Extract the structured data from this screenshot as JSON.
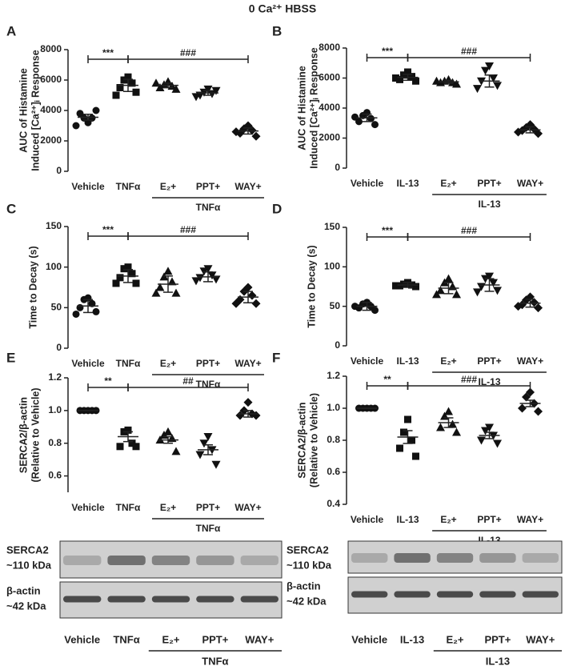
{
  "title": "0 Ca²⁺ HBSS",
  "chart_data": [
    {
      "type": "dot",
      "panel": "A",
      "ylabel": [
        "AUC of Histamine",
        "Induced [Ca²⁺]ᵢ Response"
      ],
      "categories": [
        "Vehicle",
        "TNFα",
        "E₂+",
        "PPT+",
        "WAY+"
      ],
      "markers": [
        "circle",
        "square",
        "triangle",
        "triangle-down",
        "diamond"
      ],
      "points": [
        [
          3200,
          3500,
          3500,
          3800,
          4000,
          3000
        ],
        [
          6200,
          6000,
          5800,
          5500,
          5200,
          5000
        ],
        [
          5900,
          5700,
          5600,
          5500,
          5400,
          5800
        ],
        [
          5400,
          5200,
          5100,
          5000,
          5300,
          4900
        ],
        [
          3000,
          2800,
          2700,
          2500,
          2300,
          2600
        ]
      ],
      "means": [
        3550,
        5650,
        5650,
        5150,
        2650
      ],
      "errors": [
        200,
        400,
        150,
        150,
        200
      ],
      "ylim": [
        0,
        8000
      ],
      "yticks": [
        0,
        2000,
        4000,
        6000,
        8000
      ],
      "brackets": [
        {
          "label": "***",
          "from": "Vehicle",
          "to": "TNFα"
        },
        {
          "label": "###",
          "from": "TNFα",
          "to": "WAY+"
        }
      ],
      "group": {
        "label": "TNFα",
        "categories": [
          "E₂+",
          "PPT+",
          "WAY+"
        ]
      }
    },
    {
      "type": "dot",
      "panel": "B",
      "ylabel": [
        "AUC of Histamine",
        "Induced [Ca²⁺]ᵢ Response"
      ],
      "categories": [
        "Vehicle",
        "IL-13",
        "E₂+",
        "PPT+",
        "WAY+"
      ],
      "markers": [
        "circle",
        "square",
        "triangle",
        "triangle-down",
        "diamond"
      ],
      "points": [
        [
          3700,
          3500,
          3300,
          3100,
          2900,
          3400
        ],
        [
          6400,
          6200,
          6100,
          5900,
          5800,
          6000
        ],
        [
          5900,
          5800,
          5700,
          5700,
          5600,
          5800
        ],
        [
          6800,
          6500,
          6000,
          5800,
          5500,
          5300
        ],
        [
          2900,
          2700,
          2600,
          2500,
          2300,
          2400
        ]
      ],
      "means": [
        3350,
        6050,
        5750,
        5800,
        2550
      ],
      "errors": [
        250,
        200,
        100,
        400,
        200
      ],
      "ylim": [
        0,
        8000
      ],
      "yticks": [
        0,
        2000,
        4000,
        6000,
        8000
      ],
      "brackets": [
        {
          "label": "***",
          "from": "Vehicle",
          "to": "IL-13"
        },
        {
          "label": "###",
          "from": "IL-13",
          "to": "WAY+"
        }
      ],
      "group": {
        "label": "IL-13",
        "categories": [
          "E₂+",
          "PPT+",
          "WAY+"
        ]
      }
    },
    {
      "type": "dot",
      "panel": "C",
      "ylabel": [
        "Time to Decay (s)"
      ],
      "categories": [
        "Vehicle",
        "TNFα",
        "E₂+",
        "PPT+",
        "WAY+"
      ],
      "markers": [
        "circle",
        "square",
        "triangle",
        "triangle-down",
        "diamond"
      ],
      "points": [
        [
          62,
          60,
          55,
          50,
          45,
          42
        ],
        [
          100,
          98,
          92,
          87,
          80,
          80
        ],
        [
          95,
          88,
          82,
          75,
          68,
          68
        ],
        [
          98,
          95,
          90,
          87,
          85,
          83
        ],
        [
          75,
          70,
          65,
          60,
          55,
          55
        ]
      ],
      "means": [
        52,
        89,
        79,
        88,
        63
      ],
      "errors": [
        8,
        8,
        10,
        6,
        7
      ],
      "ylim": [
        0,
        150
      ],
      "yticks": [
        0,
        50,
        100,
        150
      ],
      "brackets": [
        {
          "label": "***",
          "from": "Vehicle",
          "to": "TNFα"
        },
        {
          "label": "###",
          "from": "TNFα",
          "to": "WAY+"
        }
      ],
      "group": {
        "label": "TNFα",
        "categories": [
          "E₂+",
          "PPT+",
          "WAY+"
        ]
      }
    },
    {
      "type": "dot",
      "panel": "D",
      "ylabel": [
        "Time to Decay (s)"
      ],
      "categories": [
        "Vehicle",
        "IL-13",
        "E₂+",
        "PPT+",
        "WAY+"
      ],
      "markers": [
        "circle",
        "square",
        "triangle",
        "triangle-down",
        "diamond"
      ],
      "points": [
        [
          55,
          53,
          50,
          48,
          45,
          50
        ],
        [
          80,
          78,
          77,
          76,
          75,
          76
        ],
        [
          85,
          80,
          75,
          70,
          65,
          65
        ],
        [
          88,
          85,
          80,
          75,
          70,
          68
        ],
        [
          62,
          58,
          55,
          52,
          48,
          50
        ]
      ],
      "means": [
        50,
        77,
        73,
        77,
        54
      ],
      "errors": [
        5,
        3,
        7,
        8,
        5
      ],
      "ylim": [
        0,
        150
      ],
      "yticks": [
        0,
        50,
        100,
        150
      ],
      "brackets": [
        {
          "label": "***",
          "from": "Vehicle",
          "to": "IL-13"
        },
        {
          "label": "###",
          "from": "IL-13",
          "to": "WAY+"
        }
      ],
      "group": {
        "label": "IL-13",
        "categories": [
          "E₂+",
          "PPT+",
          "WAY+"
        ]
      }
    },
    {
      "type": "dot",
      "panel": "E",
      "ylabel": [
        "SERCA2/β-actin",
        "(Relative to Vehicle)"
      ],
      "categories": [
        "Vehicle",
        "TNFα",
        "E₂+",
        "PPT+",
        "WAY+"
      ],
      "markers": [
        "circle",
        "square",
        "triangle",
        "triangle-down",
        "diamond"
      ],
      "points": [
        [
          1,
          1,
          1,
          1,
          1
        ],
        [
          0.88,
          0.87,
          0.8,
          0.78,
          0.78
        ],
        [
          0.87,
          0.85,
          0.83,
          0.82,
          0.75
        ],
        [
          0.84,
          0.8,
          0.76,
          0.73,
          0.67
        ],
        [
          1.05,
          1,
          0.98,
          0.97,
          0.97
        ]
      ],
      "means": [
        1,
        0.84,
        0.82,
        0.76,
        0.98
      ],
      "errors": [
        0,
        0.03,
        0.02,
        0.03,
        0.02
      ],
      "ylim": [
        0.5,
        1.2
      ],
      "yticks": [
        0.6,
        0.8,
        {
          "value": 1,
          "label": "1.0"
        },
        1.2
      ],
      "brackets": [
        {
          "label": "**",
          "from": "Vehicle",
          "to": "TNFα"
        },
        {
          "label": "##",
          "from": "TNFα",
          "to": "WAY+"
        }
      ],
      "group": {
        "label": "TNFα",
        "categories": [
          "E₂+",
          "PPT+",
          "WAY+"
        ]
      }
    },
    {
      "type": "dot",
      "panel": "F",
      "ylabel": [
        "SERCA2/β-actin",
        "(Relative to Vehicle)"
      ],
      "categories": [
        "Vehicle",
        "IL-13",
        "E₂+",
        "PPT+",
        "WAY+"
      ],
      "markers": [
        "circle",
        "square",
        "triangle",
        "triangle-down",
        "diamond"
      ],
      "points": [
        [
          1,
          1,
          1,
          1,
          1
        ],
        [
          0.93,
          0.85,
          0.8,
          0.75,
          0.7
        ],
        [
          0.98,
          0.95,
          0.9,
          0.88,
          0.85
        ],
        [
          0.88,
          0.86,
          0.83,
          0.8,
          0.78
        ],
        [
          1.1,
          1.07,
          1.03,
          1,
          0.98
        ]
      ],
      "means": [
        1,
        0.82,
        0.91,
        0.83,
        1.03
      ],
      "errors": [
        0,
        0.04,
        0.03,
        0.02,
        0.02
      ],
      "ylim": [
        0.4,
        1.2
      ],
      "yticks": [
        0.4,
        0.6,
        0.8,
        {
          "value": 1,
          "label": "1.0"
        },
        1.2
      ],
      "brackets": [
        {
          "label": "**",
          "from": "Vehicle",
          "to": "IL-13"
        },
        {
          "label": "###",
          "from": "IL-13",
          "to": "WAY+"
        }
      ],
      "group": {
        "label": "IL-13",
        "categories": [
          "E₂+",
          "PPT+",
          "WAY+"
        ]
      }
    }
  ],
  "blots": [
    {
      "rows": [
        {
          "label": "SERCA2",
          "size": "~110 kDa"
        },
        {
          "label": "β-actin",
          "size": "~42 kDa"
        }
      ],
      "lanes": [
        "Vehicle",
        "TNFα",
        "E₂+",
        "PPT+",
        "WAY+"
      ],
      "group": {
        "label": "TNFα",
        "lanes": [
          "E₂+",
          "PPT+",
          "WAY+"
        ]
      }
    },
    {
      "rows": [
        {
          "label": "SERCA2",
          "size": "~110 kDa"
        },
        {
          "label": "β-actin",
          "size": "~42 kDa"
        }
      ],
      "lanes": [
        "Vehicle",
        "IL-13",
        "E₂+",
        "PPT+",
        "WAY+"
      ],
      "group": {
        "label": "IL-13",
        "lanes": [
          "E₂+",
          "PPT+",
          "WAY+"
        ]
      }
    }
  ]
}
